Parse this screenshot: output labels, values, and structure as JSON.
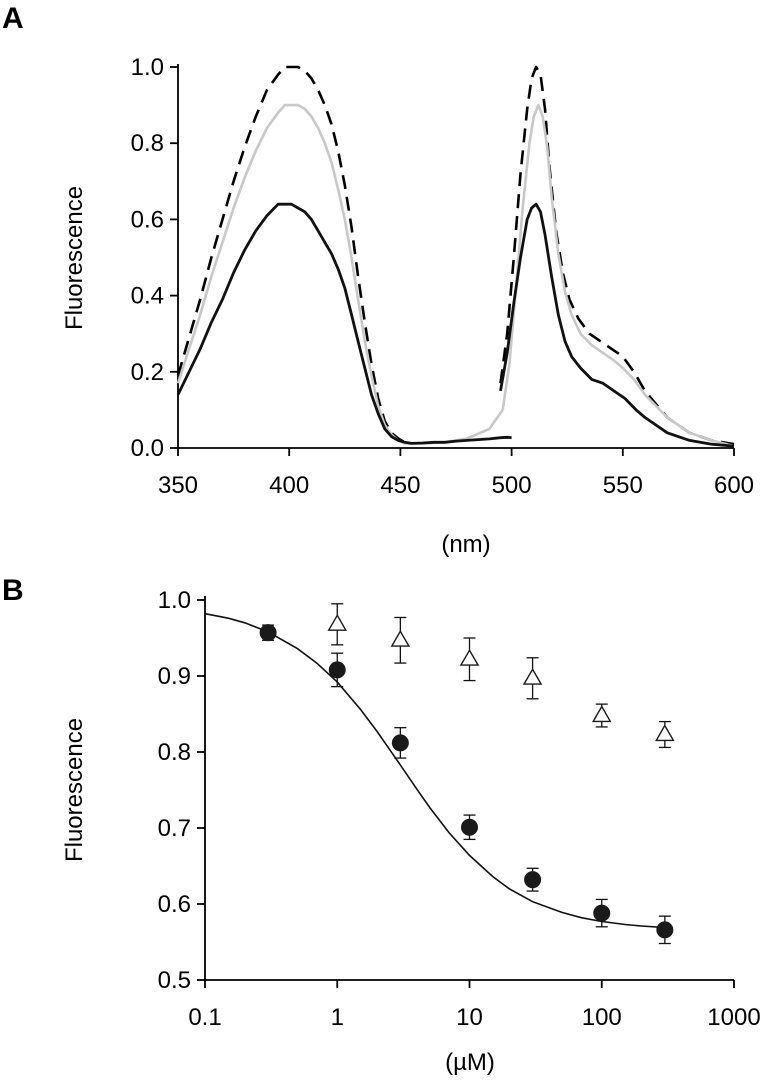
{
  "chart_data": [
    {
      "panel": "A",
      "type": "line",
      "title": "",
      "xlabel": "(nm)",
      "ylabel": "Fluorescence",
      "xlim": [
        350,
        600
      ],
      "ylim": [
        0.0,
        1.0
      ],
      "xticks": [
        "350",
        "400",
        "450",
        "500",
        "550",
        "600"
      ],
      "yticks": [
        "0.0",
        "0.2",
        "0.4",
        "0.6",
        "0.8",
        "1.0"
      ],
      "grid": false,
      "series": [
        {
          "color": "#000000",
          "dash": "14,8",
          "width": 2.6,
          "segments": [
            {
              "x": [
                350,
                355,
                360,
                365,
                370,
                375,
                380,
                385,
                390,
                395,
                398,
                401,
                404,
                407,
                410,
                413,
                416,
                419,
                422,
                425,
                428,
                431,
                434,
                437,
                440,
                443,
                446,
                449,
                452
              ],
              "y": [
                0.19,
                0.29,
                0.39,
                0.5,
                0.6,
                0.7,
                0.79,
                0.87,
                0.94,
                0.98,
                1.0,
                1.0,
                1.0,
                0.99,
                0.97,
                0.94,
                0.9,
                0.85,
                0.78,
                0.69,
                0.58,
                0.45,
                0.33,
                0.22,
                0.13,
                0.07,
                0.04,
                0.025,
                0.015
              ]
            },
            {
              "x": [
                495,
                498,
                501,
                504,
                507,
                509,
                511,
                513,
                515,
                517,
                520,
                523,
                526,
                530,
                535,
                540,
                545,
                550,
                555,
                560,
                570,
                580,
                590,
                600
              ],
              "y": [
                0.17,
                0.3,
                0.5,
                0.72,
                0.89,
                0.97,
                1.0,
                0.98,
                0.89,
                0.74,
                0.57,
                0.46,
                0.39,
                0.34,
                0.3,
                0.28,
                0.26,
                0.24,
                0.2,
                0.15,
                0.08,
                0.04,
                0.02,
                0.01
              ]
            }
          ]
        },
        {
          "color": "#c8c8c8",
          "dash": "",
          "width": 2.6,
          "segments": [
            {
              "x": [
                350,
                355,
                360,
                365,
                370,
                375,
                380,
                385,
                390,
                395,
                398,
                401,
                404,
                407,
                410,
                413,
                416,
                419,
                422,
                425,
                428,
                431,
                434,
                437,
                440,
                443,
                446,
                449,
                452,
                460,
                470,
                480,
                490,
                496
              ],
              "y": [
                0.17,
                0.26,
                0.35,
                0.45,
                0.54,
                0.63,
                0.71,
                0.78,
                0.84,
                0.88,
                0.9,
                0.9,
                0.9,
                0.89,
                0.87,
                0.84,
                0.8,
                0.75,
                0.68,
                0.6,
                0.5,
                0.39,
                0.28,
                0.19,
                0.11,
                0.06,
                0.035,
                0.02,
                0.012,
                0.012,
                0.015,
                0.025,
                0.05,
                0.1
              ]
            },
            {
              "x": [
                496,
                499,
                502,
                505,
                508,
                510,
                512,
                514,
                516,
                518,
                521,
                524,
                527,
                531,
                536,
                541,
                546,
                550,
                555,
                560,
                570,
                580,
                590,
                600
              ],
              "y": [
                0.1,
                0.22,
                0.42,
                0.63,
                0.8,
                0.87,
                0.9,
                0.87,
                0.79,
                0.66,
                0.51,
                0.41,
                0.35,
                0.3,
                0.27,
                0.25,
                0.23,
                0.21,
                0.18,
                0.14,
                0.08,
                0.04,
                0.02,
                0.005
              ]
            }
          ]
        },
        {
          "color": "#111111",
          "dash": "",
          "width": 2.8,
          "segments": [
            {
              "x": [
                350,
                355,
                360,
                365,
                370,
                375,
                380,
                385,
                390,
                395,
                398,
                401,
                404,
                407,
                410,
                413,
                416,
                419,
                422,
                425,
                428,
                431,
                434,
                437,
                440,
                443,
                446,
                449,
                452,
                455,
                460,
                465,
                470,
                475,
                480,
                485,
                490,
                495,
                498,
                500
              ],
              "y": [
                0.14,
                0.2,
                0.26,
                0.33,
                0.39,
                0.46,
                0.52,
                0.57,
                0.61,
                0.64,
                0.64,
                0.64,
                0.63,
                0.62,
                0.6,
                0.57,
                0.54,
                0.51,
                0.47,
                0.42,
                0.35,
                0.28,
                0.21,
                0.14,
                0.09,
                0.05,
                0.03,
                0.02,
                0.015,
                0.012,
                0.013,
                0.015,
                0.015,
                0.018,
                0.02,
                0.022,
                0.024,
                0.027,
                0.028,
                0.027
              ]
            },
            {
              "x": [
                495,
                498,
                501,
                504,
                507,
                509,
                511,
                513,
                515,
                518,
                521,
                524,
                527,
                531,
                536,
                541,
                546,
                551,
                556,
                560,
                570,
                580,
                590,
                600
              ],
              "y": [
                0.15,
                0.25,
                0.38,
                0.5,
                0.6,
                0.63,
                0.64,
                0.62,
                0.56,
                0.45,
                0.35,
                0.28,
                0.24,
                0.21,
                0.18,
                0.17,
                0.15,
                0.13,
                0.1,
                0.08,
                0.04,
                0.02,
                0.01,
                0.005
              ]
            }
          ]
        }
      ]
    },
    {
      "panel": "B",
      "type": "scatter",
      "title": "",
      "xlabel": "(µM)",
      "ylabel": "Fluorescence",
      "xscale": "log",
      "xlim": [
        0.1,
        1000
      ],
      "ylim": [
        0.5,
        1.0
      ],
      "xticks": [
        "0.1",
        "1",
        "10",
        "100",
        "1000"
      ],
      "yticks": [
        "0.5",
        "0.6",
        "0.7",
        "0.8",
        "0.9",
        "1.0"
      ],
      "grid": false,
      "series": [
        {
          "marker": "filled-circle",
          "color": "#1a1a1a",
          "x": [
            0.3,
            1,
            3,
            10,
            30,
            100,
            300
          ],
          "y": [
            0.957,
            0.908,
            0.812,
            0.701,
            0.632,
            0.588,
            0.566
          ],
          "err": [
            0.01,
            0.022,
            0.02,
            0.016,
            0.015,
            0.018,
            0.018
          ]
        },
        {
          "marker": "open-triangle",
          "color": "#1a1a1a",
          "x": [
            1,
            3,
            10,
            30,
            100,
            300
          ],
          "y": [
            0.968,
            0.947,
            0.922,
            0.897,
            0.848,
            0.823
          ],
          "err": [
            0.027,
            0.03,
            0.028,
            0.027,
            0.015,
            0.017
          ]
        }
      ],
      "fit_curve": {
        "color": "#111111",
        "x": [
          0.1,
          0.15,
          0.2,
          0.3,
          0.5,
          0.7,
          1,
          1.5,
          2,
          3,
          4,
          5,
          7,
          10,
          15,
          20,
          30,
          50,
          70,
          100,
          150,
          200,
          300
        ],
        "y": [
          0.982,
          0.976,
          0.97,
          0.958,
          0.936,
          0.917,
          0.892,
          0.856,
          0.827,
          0.783,
          0.751,
          0.727,
          0.694,
          0.664,
          0.636,
          0.62,
          0.603,
          0.589,
          0.582,
          0.577,
          0.573,
          0.571,
          0.569
        ]
      }
    }
  ]
}
